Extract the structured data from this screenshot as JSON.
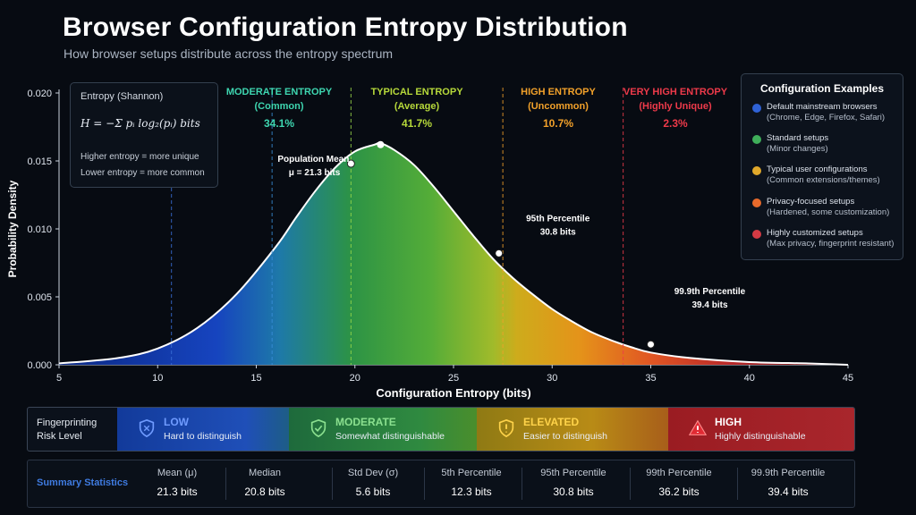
{
  "title": "Browser Configuration Entropy Distribution",
  "subtitle": "How browser setups distribute across the entropy spectrum",
  "chart_data": {
    "type": "area",
    "xlabel": "Configuration Entropy (bits)",
    "ylabel": "Probability Density",
    "xlim": [
      5,
      45
    ],
    "ylim": [
      0,
      0.02
    ],
    "x_ticks": [
      "5",
      "10",
      "15",
      "20",
      "25",
      "30",
      "35",
      "40",
      "45"
    ],
    "y_ticks": [
      "0.000",
      "0.005",
      "0.010",
      "0.015",
      "0.020"
    ],
    "curve": {
      "x": [
        5,
        8,
        10,
        12,
        14,
        16,
        17,
        18,
        19,
        20,
        21,
        21.3,
        22,
        23,
        24,
        25,
        26,
        27,
        28,
        29,
        30,
        31,
        32,
        33,
        34,
        35,
        37,
        40,
        43,
        45
      ],
      "y": [
        0.0001,
        0.0005,
        0.0012,
        0.0027,
        0.0052,
        0.0087,
        0.0108,
        0.0128,
        0.0145,
        0.0157,
        0.0162,
        0.0163,
        0.0158,
        0.0147,
        0.0131,
        0.0113,
        0.0095,
        0.0078,
        0.0064,
        0.0052,
        0.0041,
        0.0032,
        0.0024,
        0.0018,
        0.0013,
        0.0009,
        0.0005,
        0.0002,
        0.0001,
        0.0
      ]
    },
    "region_boundaries": [
      10.7,
      15.8,
      19.8,
      27.5,
      33.6
    ],
    "regions": [
      {
        "name": "MODERATE ENTROPY",
        "sub": "(Common)",
        "pct": "34.1%",
        "color": "#3ed6b0"
      },
      {
        "name": "TYPICAL ENTROPY",
        "sub": "(Average)",
        "pct": "41.7%",
        "color": "#b6d83a"
      },
      {
        "name": "HIGH ENTROPY",
        "sub": "(Uncommon)",
        "pct": "10.7%",
        "color": "#f2a12a"
      },
      {
        "name": "VERY HIGH ENTROPY",
        "sub": "(Highly Unique)",
        "pct": "2.3%",
        "color": "#ee3a4a"
      }
    ],
    "annotations": [
      {
        "line1": "Population Mean",
        "line2": "μ = 21.3 bits",
        "x": 19.8,
        "y": 0.0148
      },
      {
        "line1": "95th Percentile",
        "line2": "30.8 bits",
        "x": 27.3,
        "y": 0.0082
      },
      {
        "line1": "99.9th Percentile",
        "line2": "39.4 bits",
        "x": 35,
        "y": 0.0015
      }
    ],
    "peak_marker": {
      "x": 21.3,
      "y": 0.0162
    }
  },
  "formula_box": {
    "title": "Entropy (Shannon)",
    "formula": "H = −Σ pᵢ log₂(pᵢ)  bits",
    "line1": "Higher entropy = more unique",
    "line2": "Lower entropy = more common"
  },
  "legend": {
    "title": "Configuration Examples",
    "items": [
      {
        "t1": "Default mainstream browsers",
        "t2": "(Chrome, Edge, Firefox, Safari)",
        "color": "#2f62d6"
      },
      {
        "t1": "Standard setups",
        "t2": "(Minor changes)",
        "color": "#3fae5a"
      },
      {
        "t1": "Typical user configurations",
        "t2": "(Common extensions/themes)",
        "color": "#e0a82b"
      },
      {
        "t1": "Privacy-focused setups",
        "t2": "(Hardened, some customization)",
        "color": "#e86a2b"
      },
      {
        "t1": "Highly customized setups",
        "t2": "(Max privacy, fingerprint resistant)",
        "color": "#d43a44"
      }
    ]
  },
  "risk": {
    "label": "Fingerprinting Risk Level",
    "levels": [
      {
        "name": "LOW",
        "desc": "Hard to distinguish",
        "color": "#5f8fff",
        "bg": "linear-gradient(90deg,#123a9a,#1e4fb8 70%,#1f5a8a)",
        "icon": "shield-icon"
      },
      {
        "name": "MODERATE",
        "desc": "Somewhat distinguishable",
        "color": "#8be08f",
        "bg": "linear-gradient(90deg,#1f6a3a,#2e8a3e 70%,#3f8e2e)",
        "icon": "shield-check-icon"
      },
      {
        "name": "ELEVATED",
        "desc": "Easier to distinguish",
        "color": "#ffd34a",
        "bg": "linear-gradient(90deg,#8f7a14,#b78a14 60%,#a8601a)",
        "icon": "shield-alert-icon"
      },
      {
        "name": "HIGH",
        "desc": "Highly distinguishable",
        "color": "#ffffff",
        "bg": "linear-gradient(90deg,#9a1c22,#a8252c)",
        "icon": "warning-icon"
      }
    ]
  },
  "stats": {
    "label": "Summary Statistics",
    "items": [
      {
        "name": "Mean (μ)",
        "value": "21.3 bits"
      },
      {
        "name": "Median",
        "value": "20.8 bits"
      },
      {
        "name": "Std Dev (σ)",
        "value": "5.6 bits"
      },
      {
        "name": "5th Percentile",
        "value": "12.3 bits"
      },
      {
        "name": "95th Percentile",
        "value": "30.8 bits"
      },
      {
        "name": "99th Percentile",
        "value": "36.2 bits"
      },
      {
        "name": "99.9th Percentile",
        "value": "39.4 bits"
      }
    ]
  }
}
